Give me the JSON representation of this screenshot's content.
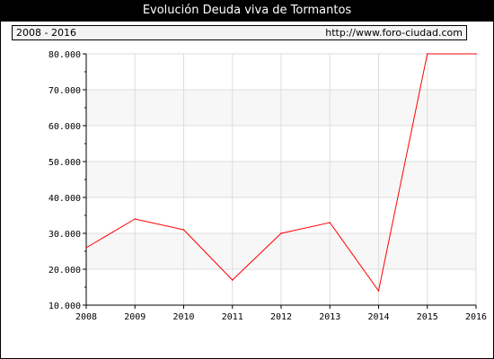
{
  "header": {
    "title": "Evolución Deuda viva de Tormantos",
    "period": "2008 - 2016",
    "source": "http://www.foro-ciudad.com"
  },
  "chart_data": {
    "type": "line",
    "title": "Evolución Deuda viva de Tormantos",
    "xlabel": "",
    "ylabel": "",
    "x": [
      2008,
      2009,
      2010,
      2011,
      2012,
      2013,
      2014,
      2015,
      2016
    ],
    "series": [
      {
        "values": [
          26000,
          34000,
          31000,
          17000,
          30000,
          33000,
          14000,
          80000,
          80000
        ]
      }
    ],
    "xlim": [
      2008,
      2016
    ],
    "ylim": [
      10000,
      80000
    ],
    "yticks": [
      10000,
      20000,
      30000,
      40000,
      50000,
      60000,
      70000,
      80000
    ],
    "ytick_labels": [
      "10.000",
      "20.000",
      "30.000",
      "40.000",
      "50.000",
      "60.000",
      "70.000",
      "80.000"
    ],
    "xtick_labels": [
      "2008",
      "2009",
      "2010",
      "2011",
      "2012",
      "2013",
      "2014",
      "2015",
      "2016"
    ],
    "grid": true,
    "line_color": "#ff0000",
    "band_color": "#f7f7f7",
    "grid_color": "#dddddd"
  }
}
